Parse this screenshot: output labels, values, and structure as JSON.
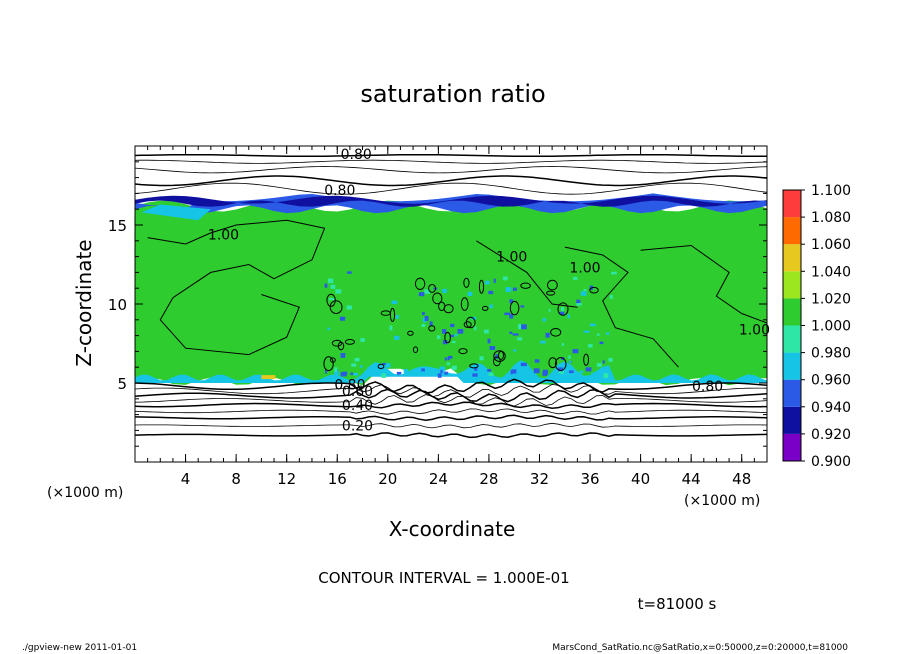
{
  "chart_data": {
    "type": "heatmap",
    "title": "saturation ratio",
    "xlabel": "X-coordinate",
    "ylabel": "Z-coordinate",
    "x_unit": "(×1000 m)",
    "y_unit": "(×1000 m)",
    "xlim": [
      0,
      50
    ],
    "ylim": [
      0,
      20
    ],
    "x_ticks": [
      4,
      8,
      12,
      16,
      20,
      24,
      28,
      32,
      36,
      40,
      44,
      48
    ],
    "y_ticks": [
      5,
      10,
      15
    ],
    "colorbar": {
      "levels": [
        "0.900",
        "0.920",
        "0.940",
        "0.960",
        "0.980",
        "1.000",
        "1.020",
        "1.040",
        "1.060",
        "1.080",
        "1.100"
      ],
      "colors": [
        "#7a00c8",
        "#1010a0",
        "#2a5ae6",
        "#16c4e6",
        "#2ee6a6",
        "#2ecc2e",
        "#9be61e",
        "#e6c81e",
        "#ff6a00",
        "#ff3c3c",
        "#ff8c8c"
      ]
    },
    "contour_labels": [
      {
        "text": "0.80",
        "x": 17.5,
        "y": 19.5
      },
      {
        "text": "0.80",
        "x": 16.2,
        "y": 17.2
      },
      {
        "text": "1.00",
        "x": 7.0,
        "y": 14.4
      },
      {
        "text": "1.00",
        "x": 29.8,
        "y": 13.0
      },
      {
        "text": "1.00",
        "x": 35.6,
        "y": 12.3
      },
      {
        "text": "1.00",
        "x": 49.0,
        "y": 8.4
      },
      {
        "text": "0.80",
        "x": 45.3,
        "y": 4.8
      },
      {
        "text": "0.80",
        "x": 17.0,
        "y": 4.9
      },
      {
        "text": "0.60",
        "x": 17.6,
        "y": 4.5
      },
      {
        "text": "0.40",
        "x": 17.6,
        "y": 3.6
      },
      {
        "text": "0.20",
        "x": 17.6,
        "y": 2.3
      }
    ],
    "contour_interval": "CONTOUR INTERVAL = 1.000E-01",
    "time_label": "t=81000 s"
  },
  "footer": {
    "left": "./gpview-new   2011-01-01",
    "right": "MarsCond_SatRatio.nc@SatRatio,x=0:50000,z=0:20000,t=81000"
  }
}
